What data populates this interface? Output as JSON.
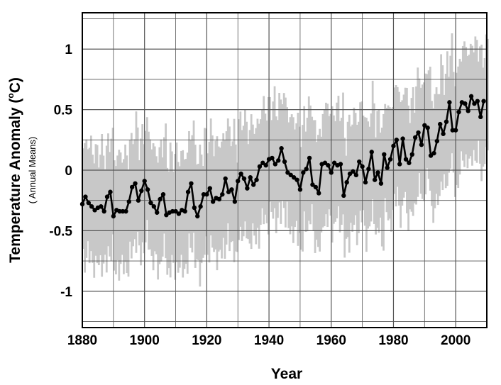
{
  "chart_data": {
    "type": "line",
    "title": "",
    "xlabel": "Year",
    "ylabel": "Temperature Anomaly (",
    "ylabel_degree": "o",
    "ylabel_unit": "C)",
    "ylabel_sub": "( Annual Means)",
    "xlim": [
      1880,
      2010
    ],
    "ylim": [
      -1.3,
      1.3
    ],
    "x_ticks": [
      1880,
      1900,
      1920,
      1940,
      1960,
      1980,
      2000
    ],
    "y_ticks": [
      -1,
      -0.5,
      0,
      0.5,
      1
    ],
    "x_tick_labels": [
      "1880",
      "1900",
      "1920",
      "1940",
      "1960",
      "1980",
      "2000"
    ],
    "y_tick_labels": [
      "-1",
      "-0.5",
      "0",
      "0.5",
      "1"
    ],
    "grid": true,
    "colors": {
      "line": "#000000",
      "band": "#c8c8c8",
      "grid": "#555555"
    },
    "series": [
      {
        "kind": "annual-mean",
        "x": [
          1880,
          1881,
          1882,
          1883,
          1884,
          1885,
          1886,
          1887,
          1888,
          1889,
          1890,
          1891,
          1892,
          1893,
          1894,
          1895,
          1896,
          1897,
          1898,
          1899,
          1900,
          1901,
          1902,
          1903,
          1904,
          1905,
          1906,
          1907,
          1908,
          1909,
          1910,
          1911,
          1912,
          1913,
          1914,
          1915,
          1916,
          1917,
          1918,
          1919,
          1920,
          1921,
          1922,
          1923,
          1924,
          1925,
          1926,
          1927,
          1928,
          1929,
          1930,
          1931,
          1932,
          1933,
          1934,
          1935,
          1936,
          1937,
          1938,
          1939,
          1940,
          1941,
          1942,
          1943,
          1944,
          1945,
          1946,
          1947,
          1948,
          1949,
          1950,
          1951,
          1952,
          1953,
          1954,
          1955,
          1956,
          1957,
          1958,
          1959,
          1960,
          1961,
          1962,
          1963,
          1964,
          1965,
          1966,
          1967,
          1968,
          1969,
          1970,
          1971,
          1972,
          1973,
          1974,
          1975,
          1976,
          1977,
          1978,
          1979,
          1980,
          1981,
          1982,
          1983,
          1984,
          1985,
          1986,
          1987,
          1988,
          1989,
          1990,
          1991,
          1992,
          1993,
          1994,
          1995,
          1996,
          1997,
          1998,
          1999,
          2000,
          2001,
          2002,
          2003,
          2004,
          2005,
          2006,
          2007,
          2008,
          2009
        ],
        "values": [
          -0.28,
          -0.22,
          -0.27,
          -0.3,
          -0.33,
          -0.31,
          -0.3,
          -0.34,
          -0.22,
          -0.18,
          -0.38,
          -0.33,
          -0.34,
          -0.34,
          -0.34,
          -0.26,
          -0.14,
          -0.11,
          -0.25,
          -0.17,
          -0.09,
          -0.16,
          -0.27,
          -0.3,
          -0.35,
          -0.24,
          -0.2,
          -0.37,
          -0.35,
          -0.34,
          -0.34,
          -0.36,
          -0.33,
          -0.34,
          -0.18,
          -0.11,
          -0.31,
          -0.38,
          -0.3,
          -0.2,
          -0.2,
          -0.15,
          -0.26,
          -0.23,
          -0.24,
          -0.2,
          -0.07,
          -0.18,
          -0.16,
          -0.26,
          -0.09,
          -0.03,
          -0.07,
          -0.15,
          -0.06,
          -0.12,
          -0.08,
          0.03,
          0.06,
          0.04,
          0.09,
          0.1,
          0.05,
          0.08,
          0.18,
          0.07,
          -0.02,
          -0.04,
          -0.06,
          -0.08,
          -0.16,
          -0.02,
          0.01,
          0.1,
          -0.12,
          -0.14,
          -0.19,
          0.05,
          0.06,
          0.04,
          -0.02,
          0.06,
          0.04,
          0.05,
          -0.21,
          -0.1,
          -0.03,
          -0.01,
          -0.04,
          0.07,
          0.03,
          -0.1,
          0.01,
          0.15,
          -0.08,
          -0.02,
          -0.11,
          0.13,
          0.02,
          0.09,
          0.2,
          0.25,
          0.05,
          0.26,
          0.09,
          0.06,
          0.13,
          0.27,
          0.31,
          0.21,
          0.37,
          0.35,
          0.12,
          0.14,
          0.24,
          0.38,
          0.3,
          0.4,
          0.56,
          0.33,
          0.33,
          0.48,
          0.56,
          0.55,
          0.49,
          0.61,
          0.55,
          0.57,
          0.44,
          0.57
        ]
      }
    ]
  }
}
